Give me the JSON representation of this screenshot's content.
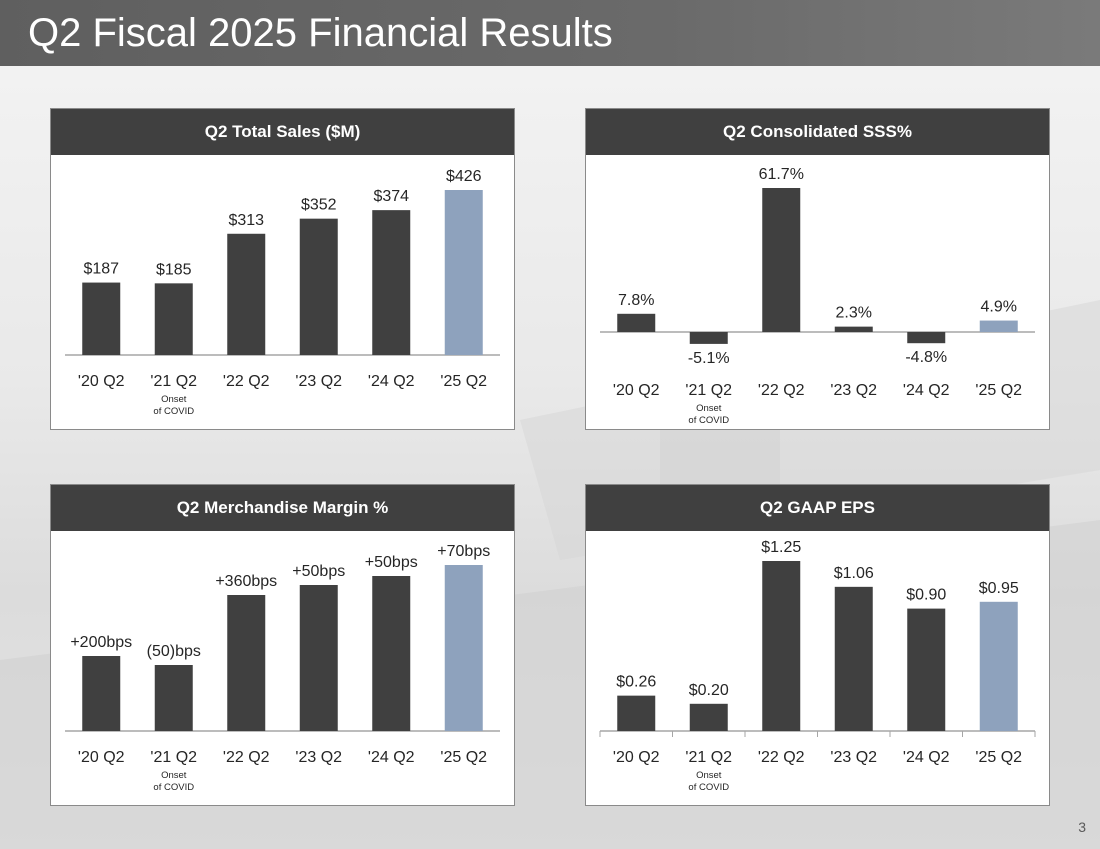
{
  "slide": {
    "title": "Q2 Fiscal 2025 Financial Results",
    "page_number": "3"
  },
  "colors": {
    "bar_dark": "#404040",
    "bar_highlight": "#8ea2bd",
    "header_bg": "#404040",
    "axis": "#a6a6a6"
  },
  "chart_data": [
    {
      "type": "bar",
      "title": "Q2 Total Sales ($M)",
      "categories": [
        "'20 Q2",
        "'21 Q2",
        "'22 Q2",
        "'23 Q2",
        "'24 Q2",
        "'25 Q2"
      ],
      "values": [
        187,
        185,
        313,
        352,
        374,
        426
      ],
      "data_labels": [
        "$187",
        "$185",
        "$313",
        "$352",
        "$374",
        "$426"
      ],
      "highlight_index": 5,
      "ylim": [
        0,
        426
      ],
      "annotation": {
        "category_index": 1,
        "lines": [
          "Onset",
          "of COVID"
        ]
      }
    },
    {
      "type": "bar",
      "title": "Q2 Consolidated SSS%",
      "categories": [
        "'20 Q2",
        "'21 Q2",
        "'22 Q2",
        "'23 Q2",
        "'24 Q2",
        "'25 Q2"
      ],
      "values": [
        7.8,
        -5.1,
        61.7,
        2.3,
        -4.8,
        4.9
      ],
      "data_labels": [
        "7.8%",
        "-5.1%",
        "61.7%",
        "2.3%",
        "-4.8%",
        "4.9%"
      ],
      "highlight_index": 5,
      "ylim": [
        -5.1,
        61.7
      ],
      "annotation": {
        "category_index": 1,
        "lines": [
          "Onset",
          "of COVID"
        ]
      }
    },
    {
      "type": "bar",
      "title": "Q2 Merchandise Margin %",
      "categories": [
        "'20 Q2",
        "'21 Q2",
        "'22 Q2",
        "'23 Q2",
        "'24 Q2",
        "'25 Q2"
      ],
      "values": [
        200,
        -50,
        360,
        50,
        50,
        70
      ],
      "data_labels": [
        "+200bps",
        "(50)bps",
        "+360bps",
        "+50bps",
        "+50bps",
        "+70bps"
      ],
      "highlight_index": 5,
      "annotation": {
        "category_index": 1,
        "lines": [
          "Onset",
          "of COVID"
        ]
      }
    },
    {
      "type": "bar",
      "title": "Q2 GAAP EPS",
      "categories": [
        "'20 Q2",
        "'21 Q2",
        "'22 Q2",
        "'23 Q2",
        "'24 Q2",
        "'25 Q2"
      ],
      "values": [
        0.26,
        0.2,
        1.25,
        1.06,
        0.9,
        0.95
      ],
      "data_labels": [
        "$0.26",
        "$0.20",
        "$1.25",
        "$1.06",
        "$0.90",
        "$0.95"
      ],
      "highlight_index": 5,
      "ylim": [
        0,
        1.25
      ],
      "annotation": {
        "category_index": 1,
        "lines": [
          "Onset",
          "of COVID"
        ]
      }
    }
  ]
}
